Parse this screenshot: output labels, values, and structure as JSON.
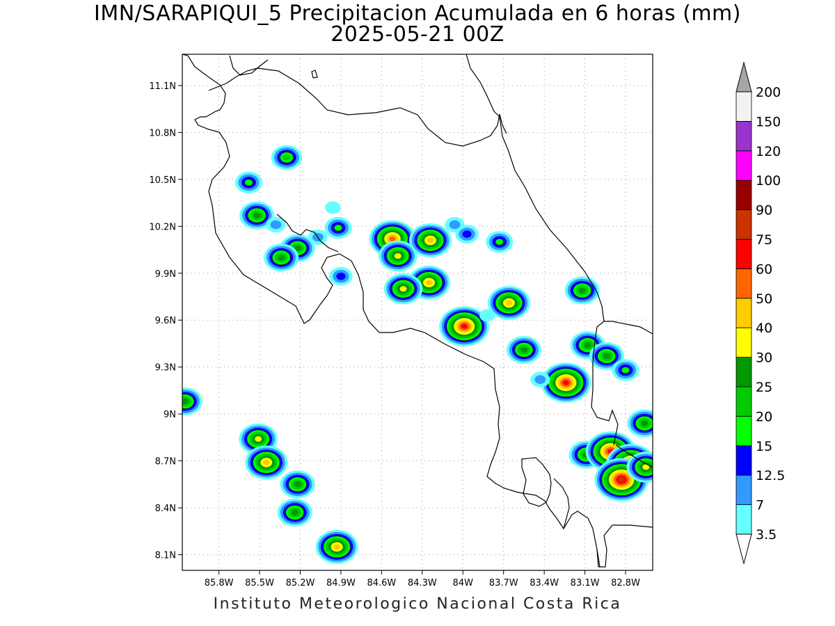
{
  "title_line1": "IMN/SARAPIQUI_5 Precipitacion Acumulada en 6 horas (mm)",
  "title_line2": "2025-05-21 00Z",
  "footer": "Instituto Meteorologico Nacional Costa Rica",
  "map": {
    "region": "Costa Rica",
    "lon_range": [
      -86.07,
      -82.6
    ],
    "lat_range": [
      8.0,
      11.3
    ],
    "grid_dotted": true,
    "lat_ticks": [
      "11.1N",
      "10.8N",
      "10.5N",
      "10.2N",
      "9.9N",
      "9.6N",
      "9.3N",
      "9N",
      "8.7N",
      "8.4N",
      "8.1N"
    ],
    "lat_values": [
      11.1,
      10.8,
      10.5,
      10.2,
      9.9,
      9.6,
      9.3,
      9.0,
      8.7,
      8.4,
      8.1
    ],
    "lon_ticks": [
      "85.8W",
      "85.5W",
      "85.2W",
      "84.9W",
      "84.6W",
      "84.3W",
      "84W",
      "83.7W",
      "83.4W",
      "83.1W",
      "82.8W"
    ],
    "lon_values": [
      -85.8,
      -85.5,
      -85.2,
      -84.9,
      -84.6,
      -84.3,
      -84.0,
      -83.7,
      -83.4,
      -83.1,
      -82.8
    ]
  },
  "colorbar": {
    "levels": [
      "3.5",
      "7",
      "12.5",
      "15",
      "20",
      "25",
      "30",
      "40",
      "50",
      "60",
      "75",
      "90",
      "100",
      "120",
      "150",
      "200"
    ],
    "colors": [
      "#66ffff",
      "#3399ff",
      "#0000ff",
      "#00ff00",
      "#00cc00",
      "#009900",
      "#ffff00",
      "#ffcc00",
      "#ff6600",
      "#ff0000",
      "#cc3300",
      "#990000",
      "#ff00ff",
      "#9933cc",
      "#f2f2f2",
      "#a6a6a6"
    ]
  },
  "cells": [
    {
      "lon": -85.3,
      "lat": 10.64,
      "mm": 20
    },
    {
      "lon": -85.58,
      "lat": 10.48,
      "mm": 15
    },
    {
      "lon": -85.52,
      "lat": 10.27,
      "mm": 25
    },
    {
      "lon": -85.38,
      "lat": 10.21,
      "mm": 7
    },
    {
      "lon": -85.22,
      "lat": 10.06,
      "mm": 25
    },
    {
      "lon": -85.34,
      "lat": 10.0,
      "mm": 25
    },
    {
      "lon": -85.07,
      "lat": 10.13,
      "mm": 7
    },
    {
      "lon": -84.92,
      "lat": 10.19,
      "mm": 15
    },
    {
      "lon": -84.9,
      "lat": 9.88,
      "mm": 12.5
    },
    {
      "lon": -84.96,
      "lat": 10.32,
      "mm": 3.5
    },
    {
      "lon": -84.52,
      "lat": 10.12,
      "mm": 50
    },
    {
      "lon": -84.48,
      "lat": 10.01,
      "mm": 30
    },
    {
      "lon": -84.24,
      "lat": 10.11,
      "mm": 40
    },
    {
      "lon": -84.25,
      "lat": 9.84,
      "mm": 40
    },
    {
      "lon": -84.44,
      "lat": 9.8,
      "mm": 30
    },
    {
      "lon": -84.06,
      "lat": 10.21,
      "mm": 7
    },
    {
      "lon": -83.97,
      "lat": 10.15,
      "mm": 12.5
    },
    {
      "lon": -83.73,
      "lat": 10.1,
      "mm": 15
    },
    {
      "lon": -83.99,
      "lat": 9.56,
      "mm": 60
    },
    {
      "lon": -83.66,
      "lat": 9.71,
      "mm": 40
    },
    {
      "lon": -83.55,
      "lat": 9.41,
      "mm": 25
    },
    {
      "lon": -83.24,
      "lat": 9.2,
      "mm": 60
    },
    {
      "lon": -83.08,
      "lat": 9.44,
      "mm": 25
    },
    {
      "lon": -83.12,
      "lat": 9.79,
      "mm": 25
    },
    {
      "lon": -82.94,
      "lat": 9.37,
      "mm": 25
    },
    {
      "lon": -82.8,
      "lat": 9.28,
      "mm": 15
    },
    {
      "lon": -82.66,
      "lat": 8.94,
      "mm": 25
    },
    {
      "lon": -83.09,
      "lat": 8.74,
      "mm": 25
    },
    {
      "lon": -82.91,
      "lat": 8.76,
      "mm": 60
    },
    {
      "lon": -82.76,
      "lat": 8.68,
      "mm": 60
    },
    {
      "lon": -82.83,
      "lat": 8.58,
      "mm": 75
    },
    {
      "lon": -82.65,
      "lat": 8.66,
      "mm": 30
    },
    {
      "lon": -86.05,
      "lat": 9.08,
      "mm": 25
    },
    {
      "lon": -85.51,
      "lat": 8.84,
      "mm": 30
    },
    {
      "lon": -85.45,
      "lat": 8.69,
      "mm": 40
    },
    {
      "lon": -85.22,
      "lat": 8.55,
      "mm": 25
    },
    {
      "lon": -85.24,
      "lat": 8.37,
      "mm": 25
    },
    {
      "lon": -84.93,
      "lat": 8.15,
      "mm": 40
    },
    {
      "lon": -83.43,
      "lat": 9.22,
      "mm": 7
    },
    {
      "lon": -83.82,
      "lat": 9.63,
      "mm": 3.5
    }
  ]
}
